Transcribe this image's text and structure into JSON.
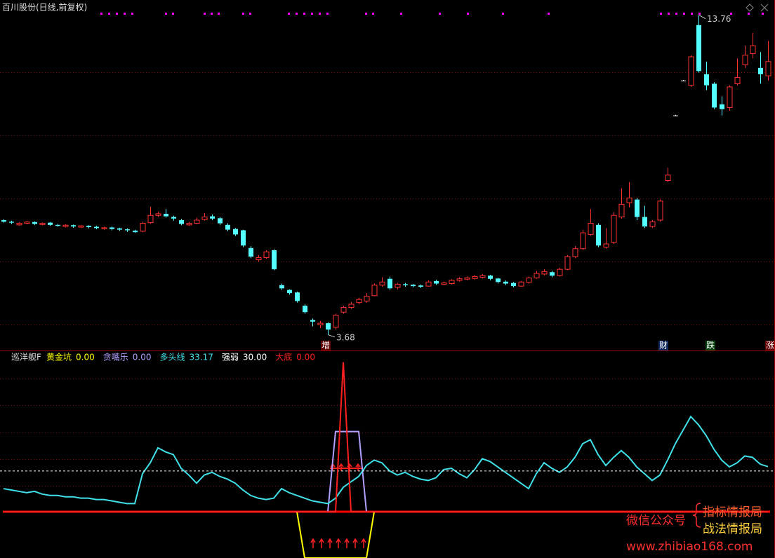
{
  "chart_data": [
    {
      "type": "candlestick",
      "title": "百川股份(日线,前复权)",
      "open": [
        7.3,
        7.25,
        7.15,
        7.2,
        7.24,
        7.16,
        7.22,
        7.15,
        7.1,
        7.14,
        7.08,
        7.12,
        7.09,
        7.03,
        7.07,
        7.04,
        7.01,
        6.97,
        6.95,
        7.22,
        7.45,
        7.5,
        7.4,
        7.3,
        7.15,
        7.2,
        7.32,
        7.42,
        7.36,
        7.15,
        7.02,
        6.98,
        6.42,
        6.05,
        6.12,
        6.35,
        5.25,
        5.1,
        5.02,
        4.6,
        4.15,
        4.0,
        4.05,
        3.92,
        4.4,
        4.55,
        4.7,
        4.75,
        4.92,
        5.25,
        5.45,
        5.18,
        5.28,
        5.26,
        5.24,
        5.22,
        5.38,
        5.28,
        5.3,
        5.4,
        5.44,
        5.46,
        5.5,
        5.55,
        5.46,
        5.36,
        5.32,
        5.22,
        5.34,
        5.48,
        5.6,
        5.66,
        5.55,
        5.75,
        6.15,
        6.4,
        6.85,
        7.15,
        6.45,
        6.6,
        7.4,
        7.85,
        7.95,
        7.4,
        7.1,
        7.3,
        8.55,
        10.6,
        11.7,
        11.55,
        13.45,
        11.9,
        11.6,
        10.95,
        10.85,
        11.6,
        12.2,
        12.55,
        12.1,
        11.85
      ],
      "high": [
        7.33,
        7.28,
        7.24,
        7.27,
        7.26,
        7.23,
        7.24,
        7.18,
        7.17,
        7.16,
        7.15,
        7.14,
        7.12,
        7.09,
        7.1,
        7.06,
        7.04,
        7.0,
        7.25,
        7.72,
        7.56,
        7.65,
        7.44,
        7.34,
        7.24,
        7.38,
        7.52,
        7.48,
        7.4,
        7.2,
        7.05,
        7.0,
        6.48,
        6.2,
        6.35,
        6.38,
        5.3,
        5.12,
        5.05,
        4.65,
        4.2,
        4.12,
        4.08,
        4.35,
        4.6,
        4.72,
        4.85,
        5.0,
        5.3,
        5.5,
        5.52,
        5.32,
        5.32,
        5.29,
        5.27,
        5.4,
        5.42,
        5.36,
        5.44,
        5.5,
        5.52,
        5.58,
        5.6,
        5.58,
        5.48,
        5.4,
        5.35,
        5.38,
        5.52,
        5.7,
        5.75,
        5.7,
        5.8,
        6.2,
        6.48,
        7.0,
        7.65,
        7.2,
        7.05,
        7.55,
        8.3,
        8.5,
        8.0,
        7.75,
        7.3,
        7.95,
        8.95,
        10.62,
        11.72,
        12.5,
        13.76,
        12.3,
        11.65,
        11.2,
        11.55,
        12.4,
        12.8,
        13.2,
        12.6,
        12.95
      ],
      "low": [
        7.22,
        7.18,
        7.12,
        7.17,
        7.15,
        7.13,
        7.12,
        7.09,
        7.07,
        7.06,
        7.05,
        7.04,
        7.01,
        7.0,
        6.98,
        6.96,
        6.93,
        6.9,
        6.92,
        7.18,
        7.4,
        7.38,
        7.28,
        7.14,
        7.12,
        7.17,
        7.28,
        7.3,
        7.15,
        6.95,
        6.8,
        6.45,
        6.1,
        6.0,
        6.08,
        5.72,
        5.1,
        4.95,
        4.7,
        4.35,
        3.95,
        3.9,
        3.68,
        3.85,
        4.35,
        4.5,
        4.65,
        4.7,
        4.9,
        5.2,
        5.1,
        5.12,
        5.2,
        5.18,
        5.16,
        5.2,
        5.26,
        5.25,
        5.27,
        5.36,
        5.4,
        5.43,
        5.46,
        5.4,
        5.3,
        5.25,
        5.18,
        5.2,
        5.3,
        5.45,
        5.56,
        5.5,
        5.52,
        5.72,
        6.1,
        6.35,
        6.8,
        6.45,
        6.4,
        6.55,
        7.35,
        7.7,
        7.3,
        7.05,
        7.05,
        7.25,
        8.5,
        10.58,
        11.68,
        11.5,
        11.95,
        11.4,
        10.8,
        10.6,
        10.75,
        11.55,
        12.1,
        12.4,
        11.6,
        11.7
      ],
      "close": [
        7.25,
        7.22,
        7.2,
        7.24,
        7.18,
        7.2,
        7.15,
        7.12,
        7.14,
        7.1,
        7.12,
        7.08,
        7.05,
        7.06,
        7.02,
        7.0,
        6.98,
        6.92,
        7.2,
        7.45,
        7.5,
        7.42,
        7.35,
        7.18,
        7.2,
        7.3,
        7.4,
        7.35,
        7.2,
        7.0,
        6.85,
        6.5,
        6.15,
        6.12,
        6.3,
        5.75,
        5.15,
        5.0,
        4.75,
        4.4,
        4.1,
        4.05,
        3.85,
        4.3,
        4.55,
        4.65,
        4.8,
        4.9,
        5.25,
        5.35,
        5.15,
        5.28,
        5.25,
        5.22,
        5.2,
        5.35,
        5.3,
        5.32,
        5.4,
        5.45,
        5.48,
        5.52,
        5.55,
        5.45,
        5.35,
        5.3,
        5.22,
        5.35,
        5.48,
        5.62,
        5.68,
        5.55,
        5.75,
        6.15,
        6.4,
        6.9,
        7.2,
        6.5,
        6.55,
        7.45,
        7.8,
        8.0,
        7.4,
        7.1,
        7.25,
        7.9,
        8.72,
        10.6,
        11.7,
        12.45,
        12.0,
        11.55,
        10.85,
        10.8,
        11.5,
        11.8,
        12.5,
        12.8,
        11.9,
        12.3
      ],
      "up_color": "#ff3232",
      "down_color": "#54ffff",
      "flat_color": "#ffffff",
      "ylim": [
        3.19,
        14.24
      ],
      "max_price": 13.76,
      "min_price": 3.68,
      "signals": [
        "增",
        "财",
        "跌",
        "涨"
      ]
    },
    {
      "type": "line",
      "title": "巡洋舰F",
      "ylim": [
        -34,
        116
      ],
      "zero_color": "#ff0000",
      "series": [
        {
          "name": "黄金坑",
          "color": "#ffff00",
          "last": {
            "value": 0,
            "label": "0.00"
          },
          "values": [
            0,
            0,
            0,
            0,
            0,
            0,
            0,
            0,
            0,
            0,
            0,
            0,
            0,
            0,
            0,
            0,
            0,
            0,
            0,
            0,
            0,
            0,
            0,
            0,
            0,
            0,
            0,
            0,
            0,
            0,
            0,
            0,
            0,
            0,
            0,
            0,
            0,
            0,
            0,
            -34,
            -34,
            -34,
            -34,
            -34,
            -34,
            -34,
            -34,
            -34,
            0,
            0,
            0,
            0,
            0,
            0,
            0,
            0,
            0,
            0,
            0,
            0,
            0,
            0,
            0,
            0,
            0,
            0,
            0,
            0,
            0,
            0,
            0,
            0,
            0,
            0,
            0,
            0,
            0,
            0,
            0,
            0,
            0,
            0,
            0,
            0,
            0,
            0,
            0,
            0,
            0,
            0,
            0,
            0,
            0,
            0,
            0,
            0,
            0,
            0,
            0,
            0
          ]
        },
        {
          "name": "贪嘴乐",
          "color": "#b4a0ff",
          "last": {
            "value": 0,
            "label": "0.00"
          },
          "values": [
            0,
            0,
            0,
            0,
            0,
            0,
            0,
            0,
            0,
            0,
            0,
            0,
            0,
            0,
            0,
            0,
            0,
            0,
            0,
            0,
            0,
            0,
            0,
            0,
            0,
            0,
            0,
            0,
            0,
            0,
            0,
            0,
            0,
            0,
            0,
            0,
            0,
            0,
            0,
            0,
            0,
            0,
            0,
            59,
            59,
            59,
            59,
            0,
            0,
            0,
            0,
            0,
            0,
            0,
            0,
            0,
            0,
            0,
            0,
            0,
            0,
            0,
            0,
            0,
            0,
            0,
            0,
            0,
            0,
            0,
            0,
            0,
            0,
            0,
            0,
            0,
            0,
            0,
            0,
            0,
            0,
            0,
            0,
            0,
            0,
            0,
            0,
            0,
            0,
            0,
            0,
            0,
            0,
            0,
            0,
            0,
            0,
            0,
            0,
            0
          ]
        },
        {
          "name": "多头线",
          "color": "#40e0e8",
          "last": {
            "value": 33.17,
            "label": "33.17"
          },
          "values": [
            17,
            16,
            15,
            14,
            15,
            13,
            12,
            12,
            11,
            11,
            10,
            10,
            9,
            9,
            8,
            7,
            6,
            6,
            28,
            36,
            47,
            44,
            42,
            32,
            27,
            21,
            27,
            29,
            26,
            24,
            21,
            16,
            12,
            10,
            9,
            10,
            17,
            14,
            12,
            10,
            8,
            7,
            6,
            10,
            18,
            22,
            26,
            34,
            38,
            36,
            30,
            27,
            29,
            26,
            24,
            23,
            25,
            31,
            32,
            28,
            25,
            31,
            39,
            37,
            33,
            29,
            25,
            21,
            17,
            28,
            36,
            32,
            29,
            33,
            40,
            50,
            53,
            42,
            34,
            40,
            45,
            40,
            33,
            28,
            23,
            27,
            38,
            50,
            60,
            70,
            64,
            56,
            46,
            38,
            33,
            36,
            41,
            40,
            35,
            33.17
          ]
        },
        {
          "name": "强弱",
          "color": "#ffffff",
          "style": "level",
          "last": {
            "value": 30,
            "label": "30.00"
          }
        },
        {
          "name": "大底",
          "color": "#ff2020",
          "last": {
            "value": 0,
            "label": "0.00"
          },
          "values": [
            0,
            0,
            0,
            0,
            0,
            0,
            0,
            0,
            0,
            0,
            0,
            0,
            0,
            0,
            0,
            0,
            0,
            0,
            0,
            0,
            0,
            0,
            0,
            0,
            0,
            0,
            0,
            0,
            0,
            0,
            0,
            0,
            0,
            0,
            0,
            0,
            0,
            0,
            0,
            0,
            0,
            0,
            0,
            0,
            110,
            0,
            0,
            0,
            0,
            0,
            0,
            0,
            0,
            0,
            0,
            0,
            0,
            0,
            0,
            0,
            0,
            0,
            0,
            0,
            0,
            0,
            0,
            0,
            0,
            0,
            0,
            0,
            0,
            0,
            0,
            0,
            0,
            0,
            0,
            0,
            0,
            0,
            0,
            0,
            0,
            0,
            0,
            0,
            0,
            0,
            0,
            0,
            0,
            0,
            0,
            0,
            0,
            0,
            0,
            0
          ]
        }
      ]
    },
    {
      "type": "watermark",
      "line1": "微信公众号",
      "line2": "指标情报局",
      "line3": "战法情报局",
      "url": "www.zhibiao168.com"
    }
  ]
}
